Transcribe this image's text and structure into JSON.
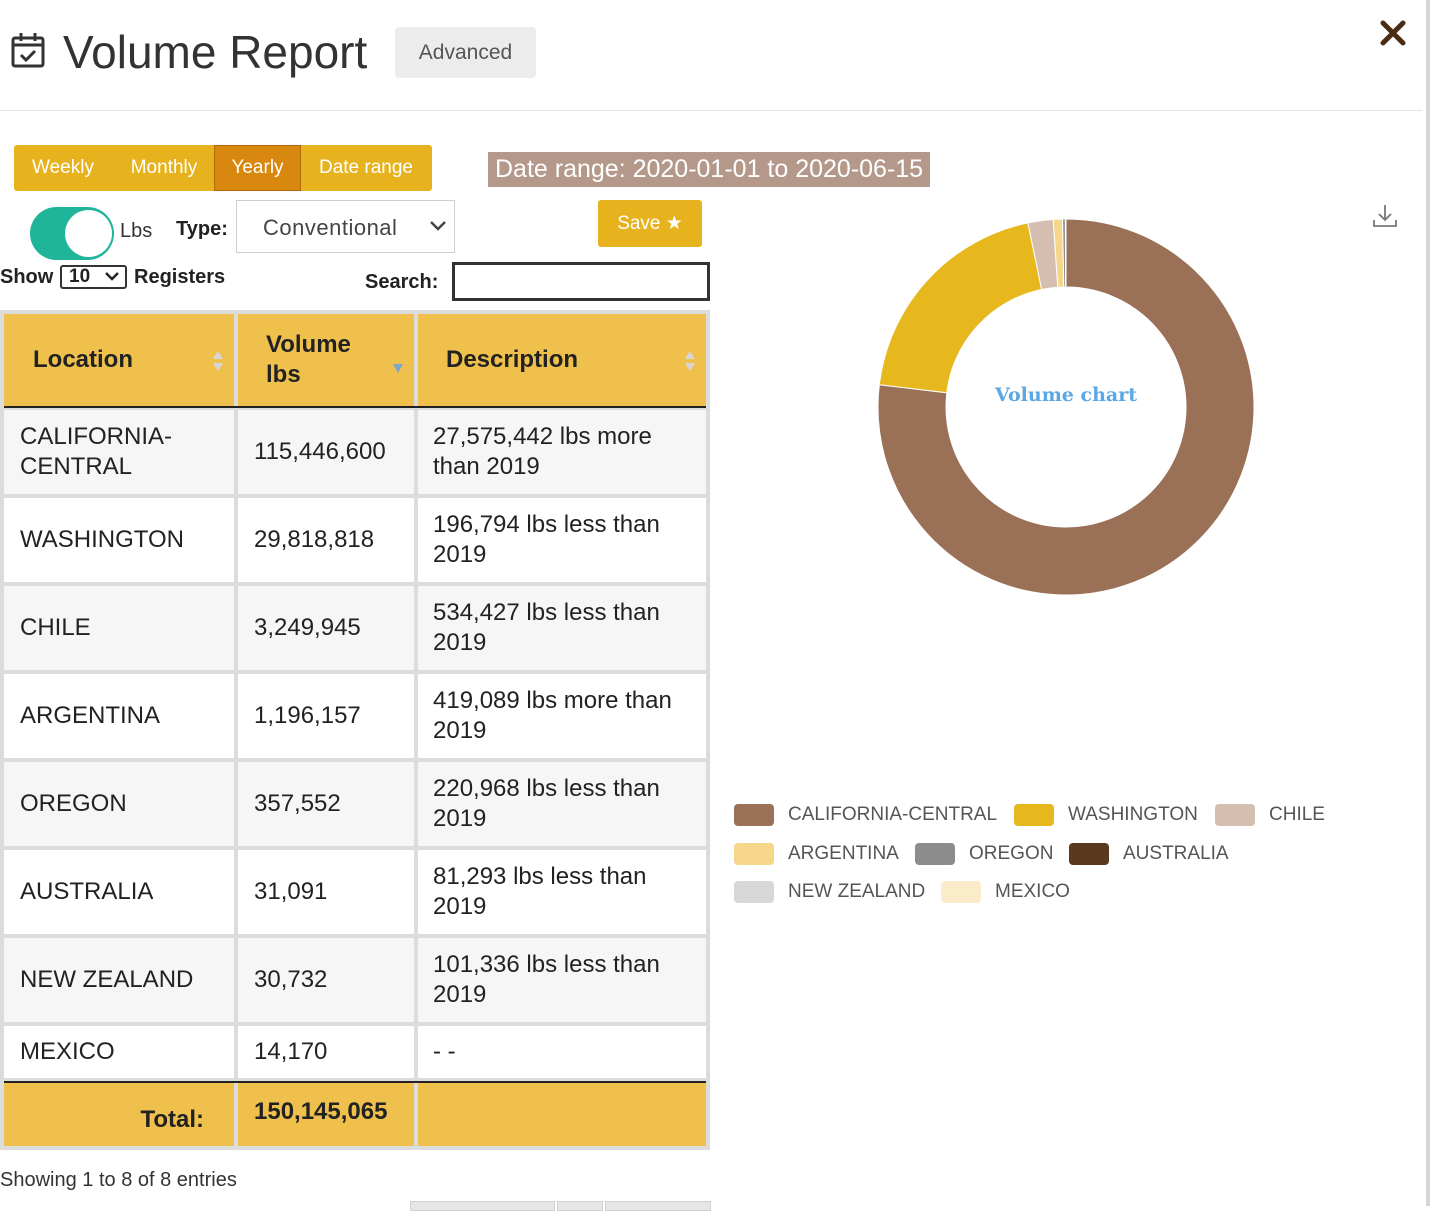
{
  "header": {
    "title": "Volume Report",
    "advanced_label": "Advanced",
    "icons": {
      "calendar": "calendar-check-icon",
      "close": "close-icon"
    }
  },
  "periods": [
    {
      "label": "Weekly",
      "active": false
    },
    {
      "label": "Monthly",
      "active": false
    },
    {
      "label": "Yearly",
      "active": true
    },
    {
      "label": "Date range",
      "active": false
    }
  ],
  "date_range_text": "Date range: 2020-01-01 to 2020-06-15",
  "unit_toggle": {
    "label": "Lbs",
    "on": true
  },
  "type_filter": {
    "label": "Type:",
    "value": "Conventional"
  },
  "save_label": "Save ★",
  "length": {
    "show_label": "Show",
    "value": "10",
    "registers_label": "Registers"
  },
  "search": {
    "label": "Search:",
    "value": ""
  },
  "table": {
    "columns": [
      "Location",
      "Volume lbs",
      "Description"
    ],
    "rows": [
      {
        "location": "CALIFORNIA-CENTRAL",
        "volume": "115,446,600",
        "description": "27,575,442 lbs more than 2019"
      },
      {
        "location": "WASHINGTON",
        "volume": "29,818,818",
        "description": "196,794 lbs less than 2019"
      },
      {
        "location": "CHILE",
        "volume": "3,249,945",
        "description": "534,427 lbs less than 2019"
      },
      {
        "location": "ARGENTINA",
        "volume": "1,196,157",
        "description": "419,089 lbs more than 2019"
      },
      {
        "location": "OREGON",
        "volume": "357,552",
        "description": "220,968 lbs less than 2019"
      },
      {
        "location": "AUSTRALIA",
        "volume": "31,091",
        "description": "81,293 lbs less than 2019"
      },
      {
        "location": "NEW ZEALAND",
        "volume": "30,732",
        "description": "101,336 lbs less than 2019"
      },
      {
        "location": "MEXICO",
        "volume": "14,170",
        "description": "- -"
      }
    ],
    "total_label": "Total:",
    "total_value": "150,145,065"
  },
  "info_text": "Showing 1 to 8 of 8 entries",
  "chart_data": {
    "type": "pie",
    "variant": "donut",
    "title": "Volume chart",
    "legend_position": "bottom",
    "categories": [
      "CALIFORNIA-CENTRAL",
      "WASHINGTON",
      "CHILE",
      "ARGENTINA",
      "OREGON",
      "AUSTRALIA",
      "NEW ZEALAND",
      "MEXICO"
    ],
    "values": [
      115446600,
      29818818,
      3249945,
      1196157,
      357552,
      31091,
      30732,
      14170
    ],
    "colors": [
      "#9a7157",
      "#e6b81e",
      "#d5beaf",
      "#f5d68a",
      "#8c8c8c",
      "#5a3a1f",
      "#d7d7d7",
      "#fbecc9"
    ]
  },
  "colors": {
    "accent": "#e6b31e",
    "header_row": "#efc14c",
    "toggle_on": "#1fb59a",
    "date_badge": "#b4998a"
  }
}
